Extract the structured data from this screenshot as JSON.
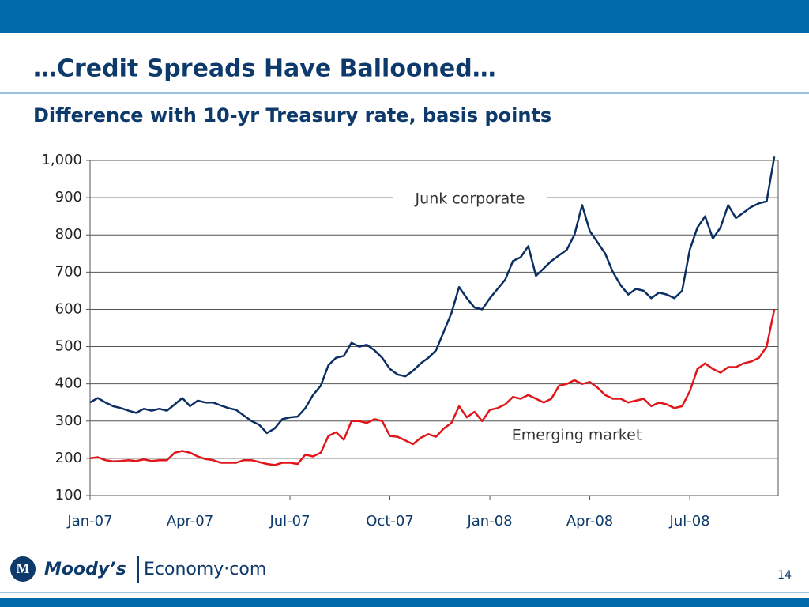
{
  "header": {
    "title": "…Credit Spreads Have Ballooned…"
  },
  "chart_data": {
    "type": "line",
    "subtitle": "Difference with 10-yr Treasury rate, basis points",
    "categories": [
      "Jan-07",
      null,
      null,
      null,
      null,
      null,
      null,
      null,
      null,
      null,
      null,
      null,
      null,
      "Apr-07",
      null,
      null,
      null,
      null,
      null,
      null,
      null,
      null,
      null,
      null,
      null,
      null,
      "Jul-07",
      null,
      null,
      null,
      null,
      null,
      null,
      null,
      null,
      null,
      null,
      null,
      null,
      "Oct-07",
      null,
      null,
      null,
      null,
      null,
      null,
      null,
      null,
      null,
      null,
      null,
      null,
      "Jan-08",
      null,
      null,
      null,
      null,
      null,
      null,
      null,
      null,
      null,
      null,
      null,
      null,
      "Apr-08",
      null,
      null,
      null,
      null,
      null,
      null,
      null,
      null,
      null,
      null,
      null,
      null,
      "Jul-08",
      null,
      null,
      null,
      null,
      null,
      null,
      null,
      null,
      null,
      null,
      null
    ],
    "series": [
      {
        "name": "Junk corporate",
        "color": "#0b2f62",
        "values": [
          350,
          362,
          350,
          340,
          335,
          328,
          322,
          333,
          328,
          333,
          328,
          345,
          362,
          340,
          355,
          350,
          350,
          342,
          335,
          330,
          315,
          300,
          290,
          268,
          280,
          305,
          310,
          312,
          335,
          370,
          395,
          450,
          470,
          475,
          510,
          500,
          505,
          490,
          470,
          440,
          425,
          420,
          435,
          455,
          470,
          490,
          540,
          590,
          660,
          630,
          605,
          600,
          630,
          655,
          680,
          730,
          740,
          770,
          690,
          710,
          730,
          745,
          760,
          800,
          880,
          810,
          780,
          750,
          700,
          665,
          640,
          655,
          650,
          630,
          645,
          640,
          630,
          650,
          760,
          820,
          850,
          790,
          820,
          880,
          845,
          860,
          875,
          885,
          890,
          1010
        ]
      },
      {
        "name": "Emerging market",
        "color": "#e0161b",
        "values": [
          200,
          203,
          195,
          192,
          193,
          195,
          193,
          197,
          193,
          195,
          195,
          215,
          220,
          215,
          205,
          198,
          195,
          188,
          188,
          188,
          195,
          195,
          190,
          185,
          182,
          188,
          188,
          185,
          210,
          205,
          215,
          260,
          270,
          250,
          300,
          300,
          295,
          305,
          300,
          260,
          258,
          248,
          238,
          255,
          265,
          258,
          280,
          295,
          340,
          310,
          325,
          300,
          330,
          335,
          345,
          365,
          360,
          370,
          360,
          350,
          360,
          395,
          400,
          410,
          400,
          405,
          390,
          370,
          360,
          360,
          350,
          355,
          360,
          340,
          350,
          345,
          335,
          340,
          380,
          440,
          455,
          440,
          430,
          445,
          445,
          455,
          460,
          470,
          500,
          600
        ]
      }
    ],
    "ylim": [
      100,
      1000
    ],
    "yticks": [
      100,
      200,
      300,
      400,
      500,
      600,
      700,
      800,
      900,
      {
        "value": 1000,
        "label": "1,000"
      }
    ],
    "grid": true
  },
  "footer": {
    "logo": "Moody’s",
    "brand": "Economy·com",
    "page": "14"
  }
}
